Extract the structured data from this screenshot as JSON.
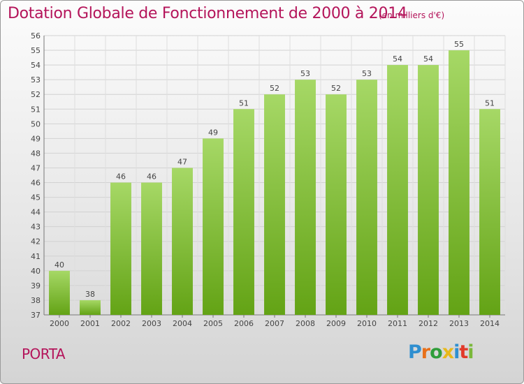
{
  "chart_data": {
    "type": "bar",
    "title": "Dotation Globale de Fonctionnement de 2000 à 2014",
    "subtitle": "(en milliers d'€)",
    "categories": [
      "2000",
      "2001",
      "2002",
      "2003",
      "2004",
      "2005",
      "2006",
      "2007",
      "2008",
      "2009",
      "2010",
      "2011",
      "2012",
      "2013",
      "2014"
    ],
    "values": [
      40,
      38,
      46,
      46,
      47,
      49,
      51,
      52,
      53,
      52,
      53,
      54,
      54,
      55,
      51
    ],
    "ylim": [
      37,
      56
    ],
    "yticks": [
      37,
      38,
      39,
      40,
      41,
      42,
      43,
      44,
      45,
      46,
      47,
      48,
      49,
      50,
      51,
      52,
      53,
      54,
      55,
      56
    ],
    "xlabel": "",
    "ylabel": "",
    "grid": true,
    "legend": "none"
  },
  "footer": {
    "commune": "PORTA",
    "logo_letters": [
      "P",
      "r",
      "o",
      "x",
      "i",
      "t",
      "i"
    ],
    "logo_colors": [
      "#2f8fd0",
      "#e8701a",
      "#2f9d3a",
      "#e8b81a",
      "#2f8fd0",
      "#e23a2a",
      "#7ab83a"
    ]
  },
  "colors": {
    "title": "#b4145a",
    "bar_top": "#a6d866",
    "bar_bottom": "#63a315"
  }
}
